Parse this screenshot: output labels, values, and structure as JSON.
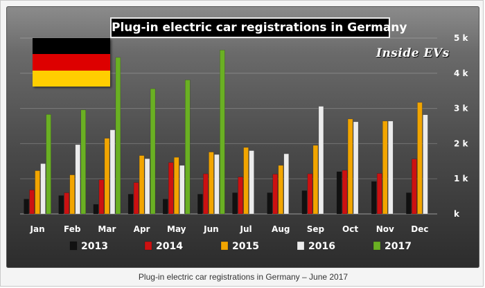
{
  "chart_data": {
    "type": "bar",
    "title": "Plug-in electric car registrations in Germany",
    "watermark": "Inside EVs",
    "categories": [
      "Jan",
      "Feb",
      "Mar",
      "Apr",
      "May",
      "Jun",
      "Jul",
      "Aug",
      "Sep",
      "Oct",
      "Nov",
      "Dec"
    ],
    "series": [
      {
        "name": "2013",
        "color": "#111111",
        "values": [
          420,
          520,
          270,
          560,
          420,
          560,
          600,
          600,
          660,
          1200,
          920,
          600
        ]
      },
      {
        "name": "2014",
        "color": "#cc1111",
        "values": [
          680,
          600,
          970,
          890,
          1460,
          1140,
          1050,
          1130,
          1140,
          1240,
          1150,
          1560
        ]
      },
      {
        "name": "2015",
        "color": "#f2a500",
        "values": [
          1230,
          1110,
          2150,
          1660,
          1610,
          1760,
          1890,
          1380,
          1950,
          2700,
          2640,
          3170
        ]
      },
      {
        "name": "2016",
        "color": "#ececec",
        "values": [
          1430,
          1970,
          2390,
          1570,
          1380,
          1690,
          1800,
          1710,
          3060,
          2620,
          2640,
          2820
        ]
      },
      {
        "name": "2017",
        "color": "#6ab023",
        "values": [
          2830,
          2960,
          4450,
          3560,
          3810,
          4660,
          null,
          null,
          null,
          null,
          null,
          null
        ]
      }
    ],
    "ylim": [
      0,
      5000
    ],
    "yticks": [
      {
        "value": 0,
        "label": "k"
      },
      {
        "value": 1000,
        "label": "1 k"
      },
      {
        "value": 2000,
        "label": "2 k"
      },
      {
        "value": 3000,
        "label": "3 k"
      },
      {
        "value": 4000,
        "label": "4 k"
      },
      {
        "value": 5000,
        "label": "5 k"
      }
    ],
    "grid": true,
    "legend_position": "bottom"
  },
  "flag_colors": [
    "#000000",
    "#dd0000",
    "#ffce00"
  ],
  "caption": "Plug-in electric car registrations in Germany – June 2017"
}
